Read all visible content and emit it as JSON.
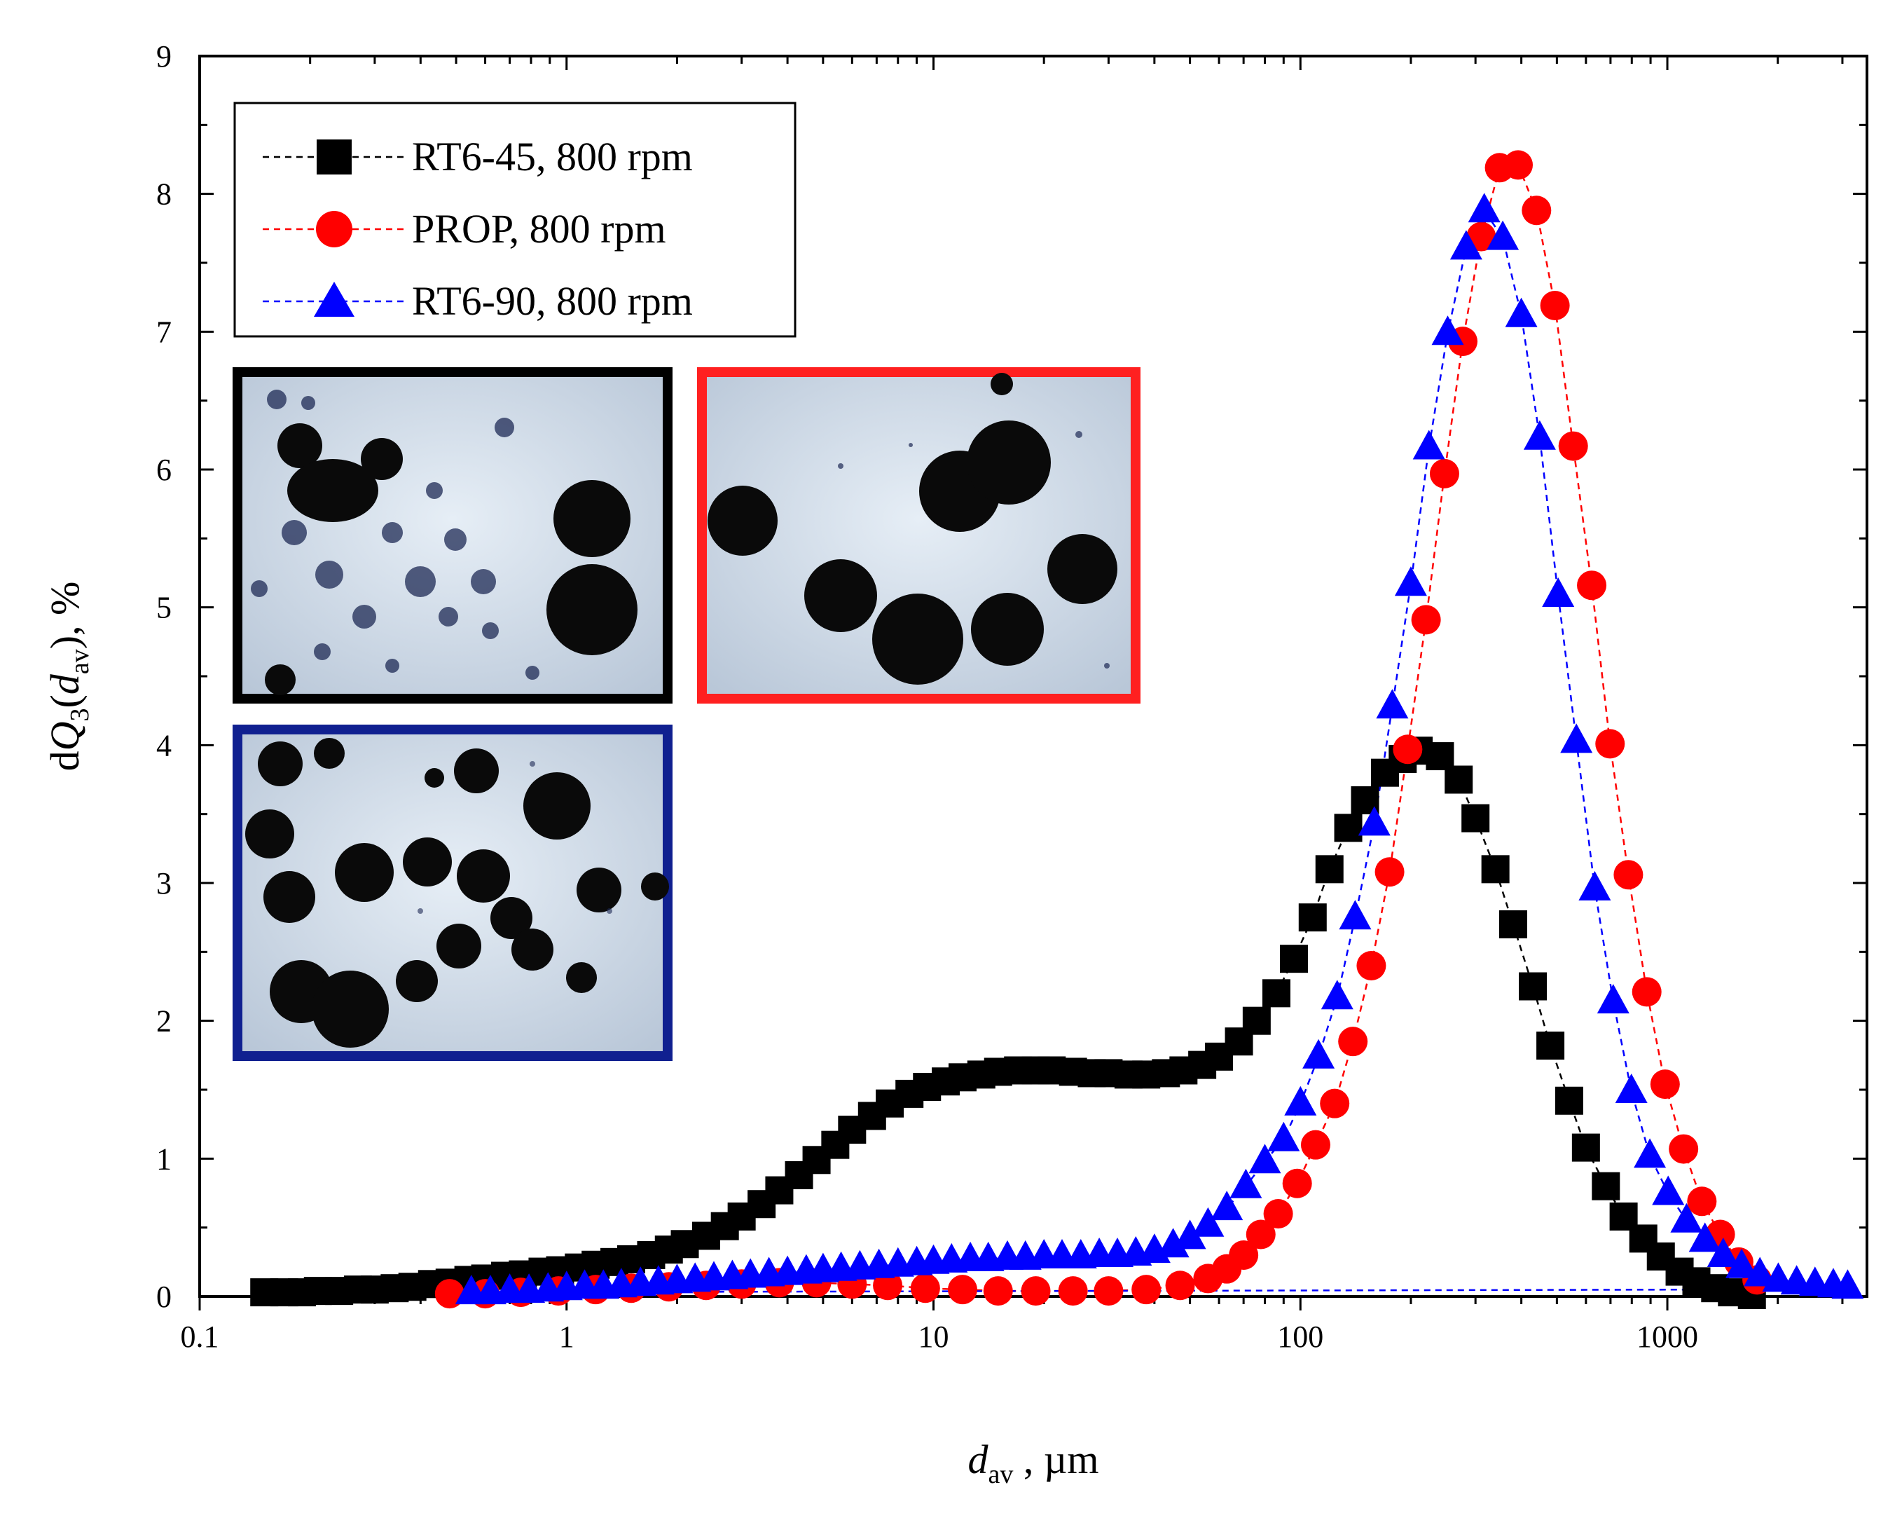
{
  "chart_data": {
    "type": "scatter",
    "title": "",
    "xscale": "log",
    "xlim": [
      0.1,
      3500
    ],
    "ylim": [
      0,
      9
    ],
    "xlabel": {
      "italic": "d",
      "sub": "av",
      "rest": " , µm"
    },
    "ylabel": {
      "pre": "d",
      "italic": "Q",
      "sub1": "3",
      "open": "(",
      "italic2": "d",
      "sub2": "av",
      "rest": "), %"
    },
    "xticks": [
      0.1,
      1,
      10,
      100,
      1000
    ],
    "xtick_labels": [
      "0.1",
      "1",
      "10",
      "100",
      "1000"
    ],
    "yticks": [
      0,
      1,
      2,
      3,
      4,
      5,
      6,
      7,
      8,
      9
    ],
    "ytick_labels": [
      "0",
      "1",
      "2",
      "3",
      "4",
      "5",
      "6",
      "7",
      "8",
      "9"
    ],
    "legend_position": "top-left",
    "series": [
      {
        "name": "RT6-45, 800 rpm",
        "color": "#000000",
        "marker": "square",
        "x": [
          0.15,
          0.17,
          0.19,
          0.21,
          0.24,
          0.27,
          0.3,
          0.34,
          0.38,
          0.43,
          0.48,
          0.54,
          0.6,
          0.68,
          0.76,
          0.86,
          0.96,
          1.08,
          1.2,
          1.35,
          1.5,
          1.7,
          1.9,
          2.1,
          2.4,
          2.7,
          3,
          3.4,
          3.8,
          4.3,
          4.8,
          5.4,
          6,
          6.8,
          7.6,
          8.6,
          9.6,
          10.8,
          12,
          13.5,
          15,
          17,
          19,
          21,
          24,
          27,
          30,
          34,
          38,
          43,
          48,
          54,
          60,
          68,
          76,
          86,
          96,
          108,
          120,
          135,
          150,
          170,
          190,
          210,
          240,
          270,
          300,
          340,
          380,
          430,
          480,
          540,
          600,
          680,
          760,
          860,
          960,
          1080,
          1200,
          1350,
          1500,
          1700
        ],
        "values": [
          0.03,
          0.03,
          0.03,
          0.04,
          0.04,
          0.05,
          0.05,
          0.06,
          0.07,
          0.09,
          0.1,
          0.12,
          0.13,
          0.15,
          0.16,
          0.18,
          0.19,
          0.21,
          0.23,
          0.25,
          0.27,
          0.3,
          0.34,
          0.38,
          0.44,
          0.51,
          0.58,
          0.67,
          0.77,
          0.88,
          0.99,
          1.1,
          1.21,
          1.31,
          1.4,
          1.47,
          1.52,
          1.56,
          1.59,
          1.61,
          1.63,
          1.64,
          1.64,
          1.64,
          1.63,
          1.62,
          1.62,
          1.61,
          1.61,
          1.62,
          1.64,
          1.68,
          1.74,
          1.85,
          2.0,
          2.2,
          2.45,
          2.75,
          3.1,
          3.4,
          3.6,
          3.8,
          3.9,
          3.96,
          3.92,
          3.75,
          3.47,
          3.1,
          2.7,
          2.25,
          1.82,
          1.42,
          1.08,
          0.8,
          0.58,
          0.42,
          0.29,
          0.18,
          0.11,
          0.06,
          0.03,
          0.01
        ]
      },
      {
        "name": "PROP, 800 rpm",
        "color": "#ff0000",
        "marker": "circle",
        "x": [
          0.48,
          0.6,
          0.75,
          0.95,
          1.2,
          1.5,
          1.9,
          2.4,
          3.0,
          3.8,
          4.8,
          6.0,
          7.5,
          9.5,
          12,
          15,
          19,
          24,
          30,
          38,
          47,
          56,
          63,
          70,
          78,
          87,
          98,
          110,
          124,
          139,
          156,
          175,
          196,
          220,
          247,
          277,
          311,
          349,
          392,
          440,
          494,
          554,
          622,
          698,
          783,
          879,
          986,
          1107,
          1242,
          1394,
          1565,
          1756
        ],
        "values": [
          0.02,
          0.02,
          0.03,
          0.04,
          0.05,
          0.06,
          0.07,
          0.08,
          0.09,
          0.1,
          0.1,
          0.09,
          0.08,
          0.06,
          0.05,
          0.04,
          0.04,
          0.04,
          0.04,
          0.05,
          0.08,
          0.13,
          0.2,
          0.3,
          0.45,
          0.6,
          0.82,
          1.1,
          1.4,
          1.85,
          2.4,
          3.08,
          3.97,
          4.91,
          5.97,
          6.93,
          7.69,
          8.19,
          8.21,
          7.88,
          7.19,
          6.17,
          5.16,
          4.01,
          3.06,
          2.21,
          1.54,
          1.07,
          0.69,
          0.45,
          0.25,
          0.12
        ]
      },
      {
        "name": "RT6-90, 800 rpm",
        "color": "#0000ff",
        "marker": "triangle",
        "x": [
          0.55,
          0.62,
          0.7,
          0.79,
          0.89,
          1.0,
          1.12,
          1.26,
          1.41,
          1.59,
          1.78,
          2.0,
          2.24,
          2.52,
          2.83,
          3.17,
          3.56,
          4.0,
          4.5,
          5.0,
          5.6,
          6.3,
          7.1,
          8.0,
          9.0,
          10.0,
          11.2,
          12.6,
          14.1,
          15.9,
          17.8,
          20,
          22.4,
          25.2,
          28.3,
          31.7,
          35.6,
          40,
          45,
          50,
          56,
          63,
          71,
          80,
          90,
          100,
          112,
          126,
          141,
          159,
          178,
          200,
          224,
          252,
          283,
          317,
          356,
          400,
          449,
          504,
          565,
          634,
          712,
          798,
          896,
          1005,
          1128,
          1266,
          1420,
          1594,
          1788,
          2006,
          2251,
          2526,
          2834,
          3100
        ],
        "values": [
          0.03,
          0.03,
          0.04,
          0.04,
          0.05,
          0.06,
          0.07,
          0.07,
          0.08,
          0.09,
          0.1,
          0.11,
          0.12,
          0.13,
          0.14,
          0.15,
          0.16,
          0.17,
          0.18,
          0.19,
          0.2,
          0.21,
          0.22,
          0.23,
          0.24,
          0.25,
          0.26,
          0.27,
          0.27,
          0.28,
          0.28,
          0.29,
          0.29,
          0.29,
          0.3,
          0.3,
          0.31,
          0.33,
          0.37,
          0.43,
          0.52,
          0.64,
          0.8,
          0.98,
          1.14,
          1.4,
          1.74,
          2.17,
          2.75,
          3.43,
          4.28,
          5.17,
          6.16,
          6.99,
          7.61,
          7.88,
          7.68,
          7.12,
          6.23,
          5.09,
          4.03,
          2.96,
          2.14,
          1.49,
          1.02,
          0.75,
          0.55,
          0.41,
          0.3,
          0.22,
          0.16,
          0.12,
          0.1,
          0.09,
          0.08,
          0.07
        ]
      }
    ],
    "baseline_line": {
      "series": 2,
      "x": [
        0.55,
        1200
      ],
      "values": [
        0.03,
        0.05
      ]
    }
  },
  "insets": [
    {
      "label": "RT6-45 micrograph",
      "frame_color": "#000000"
    },
    {
      "label": "PROP micrograph",
      "frame_color": "#ff2020"
    },
    {
      "label": "RT6-90 micrograph",
      "frame_color": "#102090"
    }
  ]
}
